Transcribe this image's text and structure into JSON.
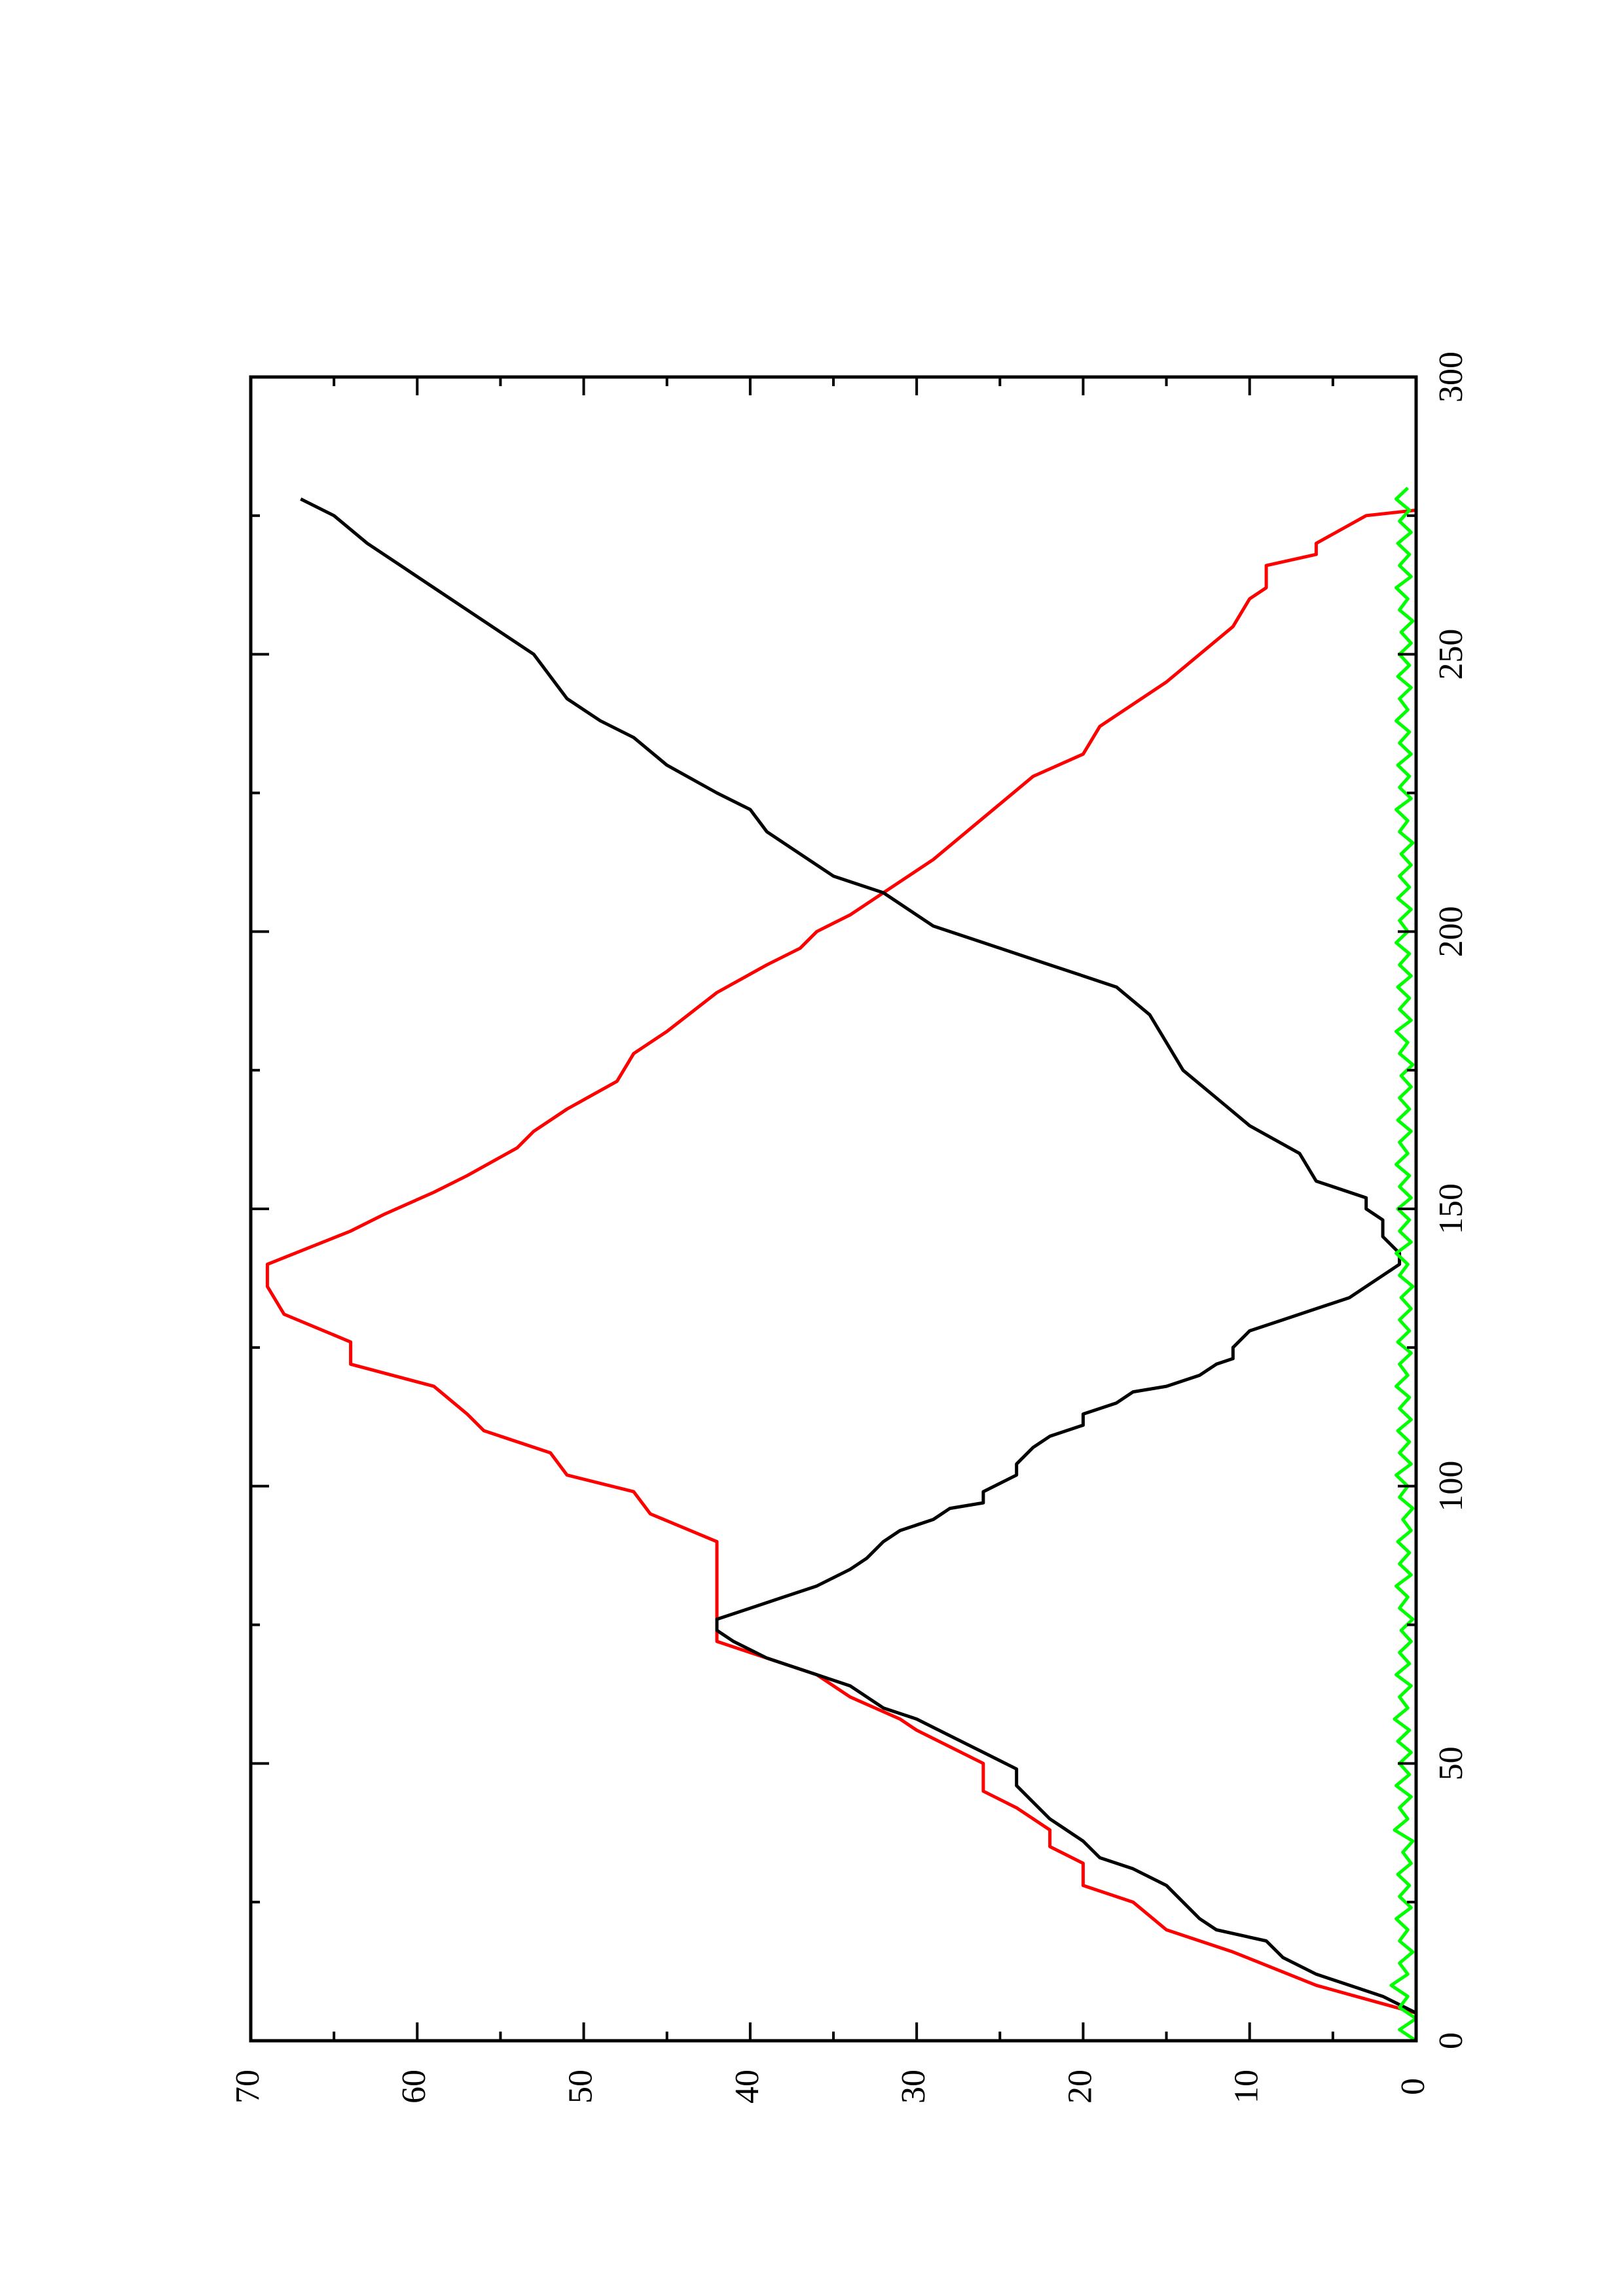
{
  "chart_data": {
    "type": "line",
    "title": "",
    "xlabel": "",
    "ylabel": "",
    "orientation": "rotated 90 degrees counter-clockwise (x axis runs bottom-to-top, y axis runs right-to-left)",
    "xlim": [
      0,
      300
    ],
    "ylim": [
      0,
      70
    ],
    "x_ticks": [
      0,
      50,
      100,
      150,
      200,
      250,
      300
    ],
    "x_tick_labels": [
      "0",
      "50",
      "100",
      "150",
      "200",
      "250",
      "300"
    ],
    "y_ticks": [
      0,
      10,
      20,
      30,
      40,
      50,
      60,
      70
    ],
    "y_tick_labels": [
      "0",
      "10",
      "20",
      "30",
      "40",
      "50",
      "60",
      "70"
    ],
    "grid": false,
    "legend": "none",
    "series": [
      {
        "color": "#ff0000",
        "step": true,
        "points": [
          [
            0,
            0
          ],
          [
            5,
            0
          ],
          [
            10,
            6
          ],
          [
            16,
            11
          ],
          [
            20,
            15
          ],
          [
            25,
            17
          ],
          [
            28,
            20
          ],
          [
            32,
            20
          ],
          [
            35,
            22
          ],
          [
            38,
            22
          ],
          [
            42,
            24
          ],
          [
            45,
            26
          ],
          [
            50,
            26
          ],
          [
            56,
            30
          ],
          [
            58,
            31
          ],
          [
            62,
            34
          ],
          [
            66,
            36
          ],
          [
            70,
            40
          ],
          [
            72,
            42
          ],
          [
            90,
            42
          ],
          [
            95,
            46
          ],
          [
            99,
            47
          ],
          [
            102,
            51
          ],
          [
            106,
            52
          ],
          [
            110,
            56
          ],
          [
            113,
            57
          ],
          [
            118,
            59
          ],
          [
            122,
            64
          ],
          [
            126,
            64
          ],
          [
            131,
            68
          ],
          [
            136,
            69
          ],
          [
            140,
            69
          ],
          [
            146,
            64
          ],
          [
            149,
            62
          ],
          [
            153,
            59
          ],
          [
            156,
            57
          ],
          [
            161,
            54
          ],
          [
            164,
            53
          ],
          [
            168,
            51
          ],
          [
            173,
            48
          ],
          [
            178,
            47
          ],
          [
            182,
            45
          ],
          [
            189,
            42
          ],
          [
            194,
            39
          ],
          [
            197,
            37
          ],
          [
            200,
            36
          ],
          [
            203,
            34
          ],
          [
            209,
            31
          ],
          [
            213,
            29
          ],
          [
            218,
            27
          ],
          [
            223,
            25
          ],
          [
            228,
            23
          ],
          [
            232,
            20
          ],
          [
            237,
            19
          ],
          [
            241,
            17
          ],
          [
            245,
            15
          ],
          [
            250,
            13
          ],
          [
            255,
            11
          ],
          [
            260,
            10
          ],
          [
            262,
            9
          ],
          [
            266,
            9
          ],
          [
            268,
            6
          ],
          [
            270,
            6
          ],
          [
            275,
            3
          ],
          [
            276,
            0
          ]
        ]
      },
      {
        "color": "#000000",
        "step": false,
        "points": [
          [
            0,
            0
          ],
          [
            5,
            0
          ],
          [
            8,
            2
          ],
          [
            10,
            4
          ],
          [
            12,
            6
          ],
          [
            15,
            8
          ],
          [
            18,
            9
          ],
          [
            20,
            12
          ],
          [
            22,
            13
          ],
          [
            25,
            14
          ],
          [
            28,
            15
          ],
          [
            31,
            17
          ],
          [
            33,
            19
          ],
          [
            36,
            20
          ],
          [
            38,
            21
          ],
          [
            40,
            22
          ],
          [
            43,
            23
          ],
          [
            46,
            24
          ],
          [
            49,
            24
          ],
          [
            52,
            26
          ],
          [
            55,
            28
          ],
          [
            58,
            30
          ],
          [
            60,
            32
          ],
          [
            62,
            33
          ],
          [
            64,
            34
          ],
          [
            66,
            36
          ],
          [
            68,
            38
          ],
          [
            69,
            39
          ],
          [
            72,
            41
          ],
          [
            74,
            42
          ],
          [
            76,
            42
          ],
          [
            78,
            40
          ],
          [
            80,
            38
          ],
          [
            82,
            36
          ],
          [
            85,
            34
          ],
          [
            87,
            33
          ],
          [
            90,
            32
          ],
          [
            92,
            31
          ],
          [
            94,
            29
          ],
          [
            96,
            28
          ],
          [
            97,
            26
          ],
          [
            99,
            26
          ],
          [
            102,
            24
          ],
          [
            104,
            24
          ],
          [
            107,
            23
          ],
          [
            109,
            22
          ],
          [
            111,
            20
          ],
          [
            113,
            20
          ],
          [
            115,
            18
          ],
          [
            117,
            17
          ],
          [
            118,
            15
          ],
          [
            120,
            13
          ],
          [
            122,
            12
          ],
          [
            123,
            11
          ],
          [
            125,
            11
          ],
          [
            128,
            10
          ],
          [
            130,
            8
          ],
          [
            132,
            6
          ],
          [
            134,
            4
          ],
          [
            136,
            3
          ],
          [
            138,
            2
          ],
          [
            140,
            1
          ],
          [
            142,
            1
          ],
          [
            145,
            2
          ],
          [
            148,
            2
          ],
          [
            150,
            3
          ],
          [
            152,
            3
          ],
          [
            155,
            6
          ],
          [
            160,
            7
          ],
          [
            165,
            10
          ],
          [
            170,
            12
          ],
          [
            175,
            14
          ],
          [
            180,
            15
          ],
          [
            185,
            16
          ],
          [
            190,
            18
          ],
          [
            192,
            20
          ],
          [
            194,
            22
          ],
          [
            196,
            24
          ],
          [
            198,
            26
          ],
          [
            201,
            29
          ],
          [
            203,
            30
          ],
          [
            207,
            32
          ],
          [
            210,
            35
          ],
          [
            214,
            37
          ],
          [
            218,
            39
          ],
          [
            222,
            40
          ],
          [
            225,
            42
          ],
          [
            230,
            45
          ],
          [
            235,
            47
          ],
          [
            238,
            49
          ],
          [
            242,
            51
          ],
          [
            246,
            52
          ],
          [
            250,
            53
          ],
          [
            254,
            55
          ],
          [
            258,
            57
          ],
          [
            262,
            59
          ],
          [
            266,
            61
          ],
          [
            270,
            63
          ],
          [
            275,
            65
          ],
          [
            278,
            67
          ]
        ]
      },
      {
        "color": "#00ff00",
        "step": false,
        "points": [
          [
            0,
            0
          ],
          [
            2,
            1
          ],
          [
            4,
            0
          ],
          [
            6,
            1
          ],
          [
            8,
            0.5
          ],
          [
            10,
            1.5
          ],
          [
            12,
            0.5
          ],
          [
            14,
            1
          ],
          [
            16,
            0.2
          ],
          [
            18,
            1
          ],
          [
            20,
            0.5
          ],
          [
            22,
            1.2
          ],
          [
            24,
            0.3
          ],
          [
            26,
            1
          ],
          [
            28,
            0.4
          ],
          [
            30,
            1.1
          ],
          [
            32,
            0.3
          ],
          [
            34,
            0.8
          ],
          [
            36,
            0.2
          ],
          [
            38,
            1.3
          ],
          [
            40,
            0.5
          ],
          [
            42,
            1
          ],
          [
            44,
            0.3
          ],
          [
            46,
            1.2
          ],
          [
            48,
            0.4
          ],
          [
            50,
            1
          ],
          [
            52,
            0.3
          ],
          [
            54,
            1.1
          ],
          [
            56,
            0.4
          ],
          [
            58,
            1.3
          ],
          [
            60,
            0.5
          ],
          [
            62,
            1
          ],
          [
            64,
            0.3
          ],
          [
            66,
            1.2
          ],
          [
            68,
            0.4
          ],
          [
            70,
            1
          ],
          [
            72,
            0.3
          ],
          [
            74,
            0.9
          ],
          [
            76,
            0.2
          ],
          [
            78,
            1
          ],
          [
            80,
            0.5
          ],
          [
            82,
            1.2
          ],
          [
            84,
            0.3
          ],
          [
            86,
            1
          ],
          [
            88,
            0.4
          ],
          [
            90,
            1.1
          ],
          [
            92,
            0.3
          ],
          [
            94,
            0.8
          ],
          [
            96,
            0.2
          ],
          [
            98,
            1
          ],
          [
            100,
            0.5
          ],
          [
            102,
            1.2
          ],
          [
            104,
            0.3
          ],
          [
            106,
            1
          ],
          [
            108,
            0.4
          ],
          [
            110,
            1.1
          ],
          [
            112,
            0.3
          ],
          [
            114,
            1
          ],
          [
            116,
            0.4
          ],
          [
            118,
            1.2
          ],
          [
            120,
            0.5
          ],
          [
            122,
            1
          ],
          [
            124,
            0.3
          ],
          [
            126,
            1.1
          ],
          [
            128,
            0.4
          ],
          [
            130,
            1
          ],
          [
            132,
            0.3
          ],
          [
            134,
            0.9
          ],
          [
            136,
            0.2
          ],
          [
            138,
            1
          ],
          [
            140,
            0.5
          ],
          [
            142,
            1.2
          ],
          [
            144,
            0.3
          ],
          [
            146,
            1
          ],
          [
            148,
            0.4
          ],
          [
            150,
            1.1
          ],
          [
            152,
            0.3
          ],
          [
            154,
            1
          ],
          [
            156,
            0.4
          ],
          [
            158,
            1.2
          ],
          [
            160,
            0.5
          ],
          [
            162,
            1
          ],
          [
            164,
            0.3
          ],
          [
            166,
            1.1
          ],
          [
            168,
            0.4
          ],
          [
            170,
            1
          ],
          [
            172,
            0.3
          ],
          [
            174,
            0.9
          ],
          [
            176,
            0.2
          ],
          [
            178,
            1
          ],
          [
            180,
            0.5
          ],
          [
            182,
            1.2
          ],
          [
            184,
            0.3
          ],
          [
            186,
            1
          ],
          [
            188,
            0.4
          ],
          [
            190,
            1.1
          ],
          [
            192,
            0.3
          ],
          [
            194,
            1
          ],
          [
            196,
            0.4
          ],
          [
            198,
            1.2
          ],
          [
            200,
            0.5
          ],
          [
            202,
            1
          ],
          [
            204,
            0.3
          ],
          [
            206,
            1.1
          ],
          [
            208,
            0.4
          ],
          [
            210,
            1
          ],
          [
            212,
            0.3
          ],
          [
            214,
            0.9
          ],
          [
            216,
            0.2
          ],
          [
            218,
            1
          ],
          [
            220,
            0.5
          ],
          [
            222,
            1.2
          ],
          [
            224,
            0.3
          ],
          [
            226,
            1
          ],
          [
            228,
            0.4
          ],
          [
            230,
            1.1
          ],
          [
            232,
            0.3
          ],
          [
            234,
            1
          ],
          [
            236,
            0.4
          ],
          [
            238,
            1.2
          ],
          [
            240,
            0.5
          ],
          [
            242,
            1
          ],
          [
            244,
            0.3
          ],
          [
            246,
            1.1
          ],
          [
            248,
            0.4
          ],
          [
            250,
            1
          ],
          [
            252,
            0.3
          ],
          [
            254,
            0.9
          ],
          [
            256,
            0.2
          ],
          [
            258,
            1
          ],
          [
            260,
            0.5
          ],
          [
            262,
            1.2
          ],
          [
            264,
            0.3
          ],
          [
            266,
            1
          ],
          [
            268,
            0.4
          ],
          [
            270,
            1.1
          ],
          [
            272,
            0.3
          ],
          [
            274,
            1
          ],
          [
            276,
            0.4
          ],
          [
            278,
            1.2
          ],
          [
            280,
            0.5
          ]
        ]
      }
    ]
  }
}
